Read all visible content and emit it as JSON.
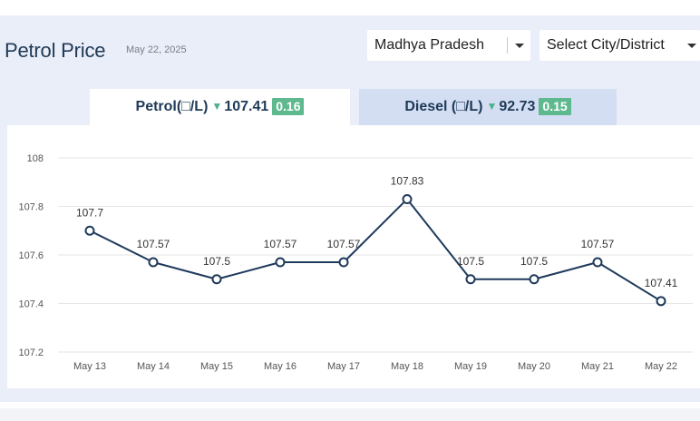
{
  "header": {
    "title": "Petrol Price",
    "date": "May 22, 2025"
  },
  "filters": {
    "state": "Madhya Pradesh",
    "city": "Select City/District"
  },
  "tabs": [
    {
      "label": "Petrol(□/L)",
      "price": "107.41",
      "change": "0.16",
      "direction": "down",
      "active": true
    },
    {
      "label": "Diesel (□/L)",
      "price": "92.73",
      "change": "0.15",
      "direction": "down",
      "active": false
    }
  ],
  "colors": {
    "line": "#1f3a5c",
    "badge": "#5fb98e",
    "panel": "#e9eef9"
  },
  "chart_data": {
    "type": "line",
    "title": "",
    "xlabel": "",
    "ylabel": "",
    "categories": [
      "May 13",
      "May 14",
      "May 15",
      "May 16",
      "May 17",
      "May 18",
      "May 19",
      "May 20",
      "May 21",
      "May 22"
    ],
    "values": [
      107.7,
      107.57,
      107.5,
      107.57,
      107.57,
      107.83,
      107.5,
      107.5,
      107.57,
      107.41
    ],
    "yticks": [
      "108",
      "107.8",
      "107.6",
      "107.4",
      "107.2"
    ],
    "ylim": [
      107.2,
      108
    ],
    "grid": true,
    "legend": "none"
  }
}
